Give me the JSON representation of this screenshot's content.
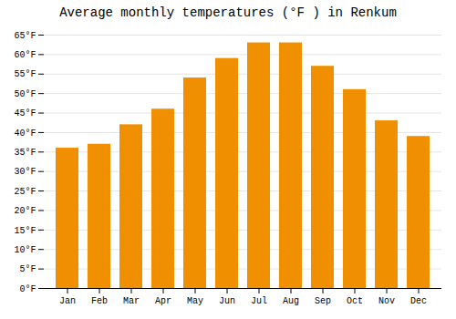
{
  "chart_data": {
    "type": "bar",
    "title": "Average monthly temperatures (°F ) in Renkum",
    "categories": [
      "Jan",
      "Feb",
      "Mar",
      "Apr",
      "May",
      "Jun",
      "Jul",
      "Aug",
      "Sep",
      "Oct",
      "Nov",
      "Dec"
    ],
    "values": [
      36,
      37,
      42,
      46,
      54,
      59,
      63,
      63,
      57,
      51,
      43,
      39
    ],
    "color": "#F09000",
    "ylim": [
      0,
      65
    ],
    "yticks": [
      {
        "value": 0,
        "label": "0°F"
      },
      {
        "value": 5,
        "label": "5°F"
      },
      {
        "value": 10,
        "label": "10°F"
      },
      {
        "value": 15,
        "label": "15°F"
      },
      {
        "value": 20,
        "label": "20°F"
      },
      {
        "value": 25,
        "label": "25°F"
      },
      {
        "value": 30,
        "label": "30°F"
      },
      {
        "value": 35,
        "label": "35°F"
      },
      {
        "value": 40,
        "label": "40°F"
      },
      {
        "value": 45,
        "label": "45°F"
      },
      {
        "value": 50,
        "label": "50°F"
      },
      {
        "value": 55,
        "label": "55°F"
      },
      {
        "value": 60,
        "label": "60°F"
      },
      {
        "value": 65,
        "label": "65°F"
      }
    ],
    "grid": true
  }
}
